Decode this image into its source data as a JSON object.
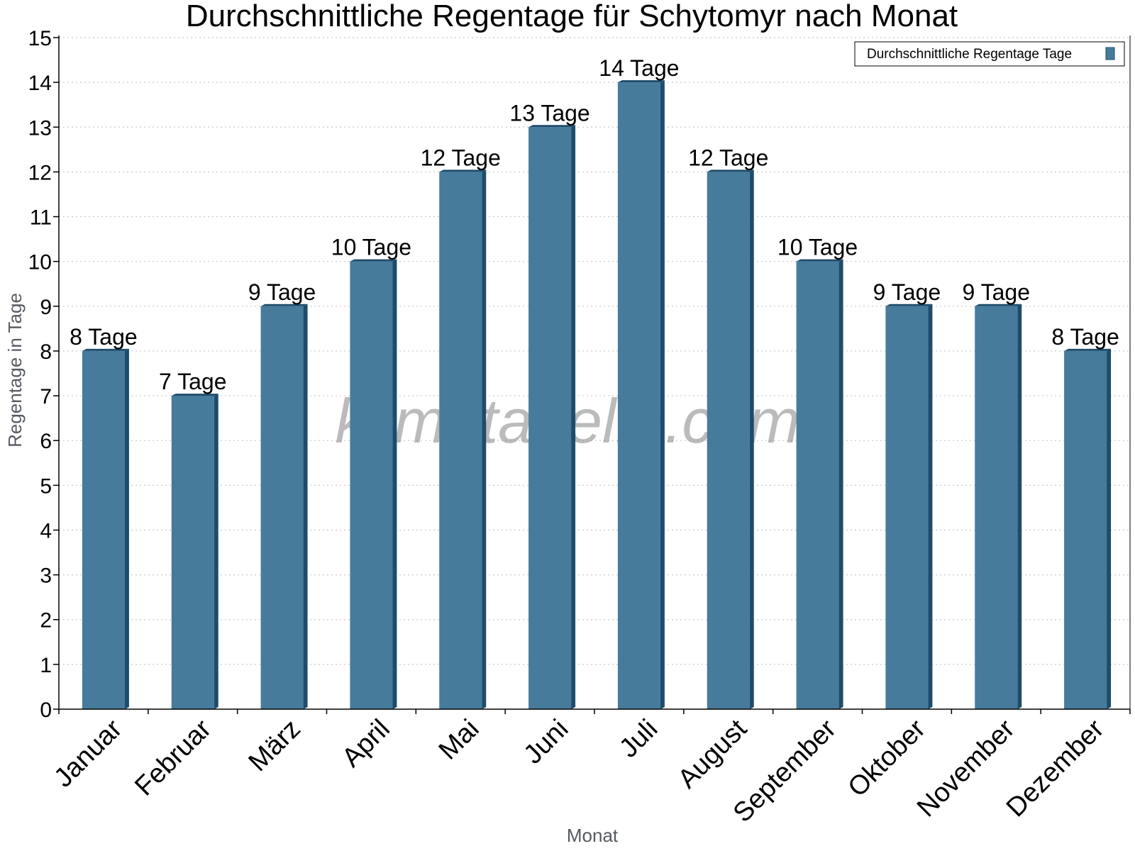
{
  "chart_data": {
    "type": "bar",
    "title": "Durchschnittliche Regentage für Schytomyr nach Monat",
    "xlabel": "Monat",
    "ylabel": "Regentage in Tage",
    "categories": [
      "Januar",
      "Februar",
      "März",
      "April",
      "Mai",
      "Juni",
      "Juli",
      "August",
      "September",
      "Oktober",
      "November",
      "Dezember"
    ],
    "series": [
      {
        "name": "Durchschnittliche Regentage Tage",
        "values": [
          8,
          7,
          9,
          10,
          12,
          13,
          14,
          12,
          10,
          9,
          9,
          8
        ],
        "labels": [
          "8 Tage",
          "7 Tage",
          "9 Tage",
          "10 Tage",
          "12 Tage",
          "13 Tage",
          "14 Tage",
          "12 Tage",
          "10 Tage",
          "9 Tage",
          "9 Tage",
          "8 Tage"
        ]
      }
    ],
    "ylim": [
      0,
      15
    ],
    "yticks": [
      0,
      1,
      2,
      3,
      4,
      5,
      6,
      7,
      8,
      9,
      10,
      11,
      12,
      13,
      14,
      15
    ],
    "grid": true,
    "legend_position": "top-right",
    "colors": {
      "bar": "#467b9c",
      "bar_side": "#1e4c6c",
      "grid": "#c8c8c8"
    }
  },
  "watermark": "klimatabelle.com"
}
